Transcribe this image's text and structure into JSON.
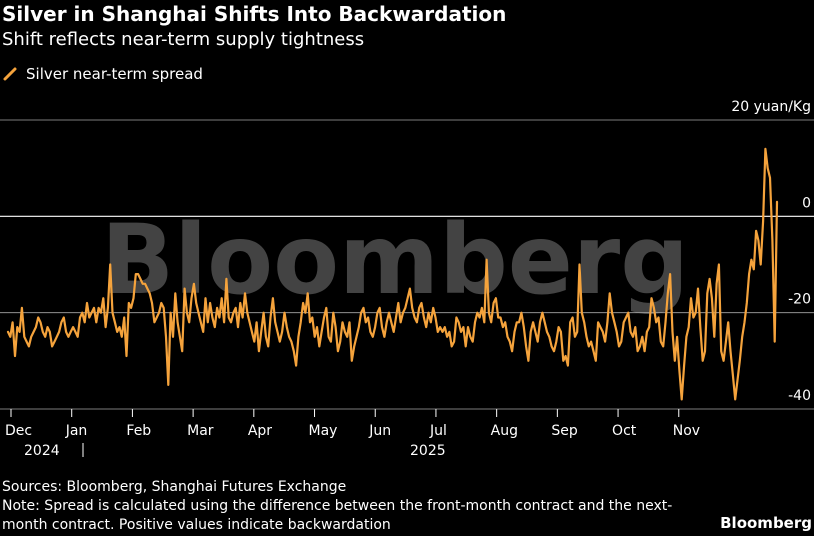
{
  "header": {
    "title": "Silver in Shanghai Shifts Into Backwardation",
    "subtitle": "Shift reflects near-term supply tightness"
  },
  "colors": {
    "series": "#f5a33c",
    "grid": "#a7a7a7",
    "zero": "#ffffff",
    "watermark": "#5a5a5a"
  },
  "watermark": "Bloomberg",
  "footer": {
    "sources": "Sources: Bloomberg, Shanghai Futures Exchange",
    "note": "Note: Spread is calculated using the difference between the front-month contract and the next-month contract. Positive values indicate backwardation"
  },
  "brand": "Bloomberg",
  "chart_data": {
    "type": "line",
    "title": "Silver in Shanghai Shifts Into Backwardation",
    "subtitle": "Shift reflects near-term supply tightness",
    "ylabel": "yuan/Kg",
    "y_unit_label": "20 yuan/Kg",
    "ylim": [
      -40,
      20
    ],
    "y_ticks": [
      {
        "value": 20,
        "label": "20 yuan/Kg"
      },
      {
        "value": 0,
        "label": "0"
      },
      {
        "value": -20,
        "label": "-20"
      },
      {
        "value": -40,
        "label": "-40"
      }
    ],
    "x_ticks": [
      "Dec",
      "Jan",
      "Feb",
      "Mar",
      "Apr",
      "May",
      "Jun",
      "Jul",
      "Aug",
      "Sep",
      "Oct",
      "Nov"
    ],
    "year_labels": [
      "2024",
      "2025"
    ],
    "grid": "horizontal",
    "legend": {
      "position": "top-left",
      "entries": [
        "Silver near-term spread"
      ]
    },
    "series": [
      {
        "name": "Silver near-term spread",
        "values": [
          -24,
          -25,
          -22,
          -29,
          -23,
          -24,
          -19,
          -25,
          -26,
          -27,
          -25,
          -24,
          -23,
          -21,
          -22,
          -24,
          -25,
          -23,
          -24,
          -27,
          -26,
          -25,
          -24,
          -22,
          -21,
          -24,
          -25,
          -24,
          -23,
          -24,
          -25,
          -21,
          -20,
          -22,
          -18,
          -21,
          -20,
          -19,
          -22,
          -19,
          -20,
          -17,
          -23,
          -19,
          -10,
          -20,
          -22,
          -24,
          -23,
          -25,
          -21,
          -29,
          -18,
          -19,
          -17,
          -12,
          -12,
          -13,
          -14,
          -14,
          -15,
          -16,
          -18,
          -22,
          -21,
          -20,
          -18,
          -19,
          -25,
          -35,
          -20,
          -25,
          -16,
          -22,
          -25,
          -28,
          -15,
          -20,
          -22,
          -17,
          -14,
          -18,
          -20,
          -22,
          -24,
          -17,
          -22,
          -18,
          -21,
          -23,
          -19,
          -21,
          -17,
          -22,
          -13,
          -21,
          -22,
          -20,
          -19,
          -23,
          -18,
          -21,
          -16,
          -20,
          -22,
          -24,
          -26,
          -22,
          -28,
          -24,
          -20,
          -25,
          -27,
          -21,
          -17,
          -22,
          -24,
          -26,
          -24,
          -20,
          -23,
          -25,
          -26,
          -28,
          -31,
          -25,
          -22,
          -18,
          -20,
          -16,
          -22,
          -21,
          -25,
          -23,
          -27,
          -24,
          -21,
          -19,
          -25,
          -26,
          -20,
          -23,
          -28,
          -26,
          -22,
          -24,
          -25,
          -22,
          -30,
          -27,
          -25,
          -23,
          -20,
          -19,
          -22,
          -21,
          -24,
          -25,
          -23,
          -20,
          -19,
          -23,
          -25,
          -22,
          -20,
          -22,
          -24,
          -21,
          -18,
          -22,
          -20,
          -19,
          -17,
          -15,
          -19,
          -21,
          -22,
          -19,
          -18,
          -21,
          -23,
          -20,
          -22,
          -19,
          -21,
          -24,
          -23,
          -24,
          -23,
          -25,
          -24,
          -27,
          -26,
          -21,
          -22,
          -24,
          -23,
          -27,
          -23,
          -25,
          -26,
          -22,
          -20,
          -21,
          -19,
          -22,
          -9,
          -20,
          -22,
          -18,
          -17,
          -21,
          -21,
          -23,
          -22,
          -25,
          -26,
          -28,
          -24,
          -22,
          -22,
          -20,
          -23,
          -27,
          -30,
          -24,
          -22,
          -24,
          -26,
          -22,
          -20,
          -22,
          -24,
          -25,
          -27,
          -28,
          -26,
          -23,
          -24,
          -30,
          -29,
          -31,
          -22,
          -21,
          -25,
          -24,
          -10,
          -20,
          -22,
          -25,
          -27,
          -26,
          -28,
          -30,
          -22,
          -23,
          -24,
          -26,
          -22,
          -16,
          -20,
          -22,
          -24,
          -27,
          -26,
          -22,
          -21,
          -20,
          -24,
          -25,
          -23,
          -28,
          -27,
          -25,
          -28,
          -24,
          -23,
          -17,
          -19,
          -22,
          -21,
          -26,
          -27,
          -22,
          -16,
          -12,
          -24,
          -30,
          -25,
          -32,
          -38,
          -31,
          -25,
          -23,
          -17,
          -21,
          -20,
          -15,
          -23,
          -30,
          -28,
          -16,
          -13,
          -17,
          -25,
          -14,
          -10,
          -28,
          -30,
          -26,
          -22,
          -28,
          -33,
          -38,
          -34,
          -30,
          -25,
          -22,
          -18,
          -12,
          -9,
          -11,
          -3,
          -5,
          -10,
          -1,
          14,
          10,
          8,
          -5,
          -26,
          3
        ]
      }
    ]
  }
}
